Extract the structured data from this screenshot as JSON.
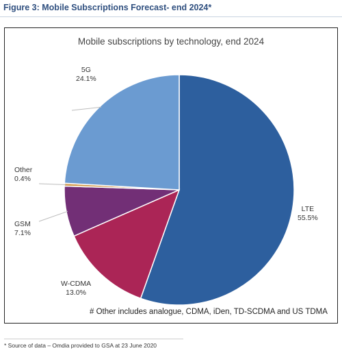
{
  "figure_title": "Figure 3: Mobile Subscriptions Forecast- end 2024*",
  "chart_note": "# Other includes analogue, CDMA, iDen, TD-SCDMA and US TDMA",
  "source_note": "* Source of data – Omdia provided to GSA at 23 June 2020",
  "chart_data": {
    "type": "pie",
    "title": "Mobile subscriptions by technology, end 2024",
    "slices": [
      {
        "label": "LTE",
        "value": 55.5,
        "display": "55.5%",
        "color": "#2d5f9e"
      },
      {
        "label": "W-CDMA",
        "value": 13.0,
        "display": "13.0%",
        "color": "#ab2556"
      },
      {
        "label": "GSM",
        "value": 7.1,
        "display": "7.1%",
        "color": "#722f76"
      },
      {
        "label": "Other",
        "value": 0.4,
        "display": "0.4%",
        "color": "#d39b4d"
      },
      {
        "label": "5G",
        "value": 24.1,
        "display": "24.1%",
        "color": "#6b9bd1"
      }
    ]
  }
}
